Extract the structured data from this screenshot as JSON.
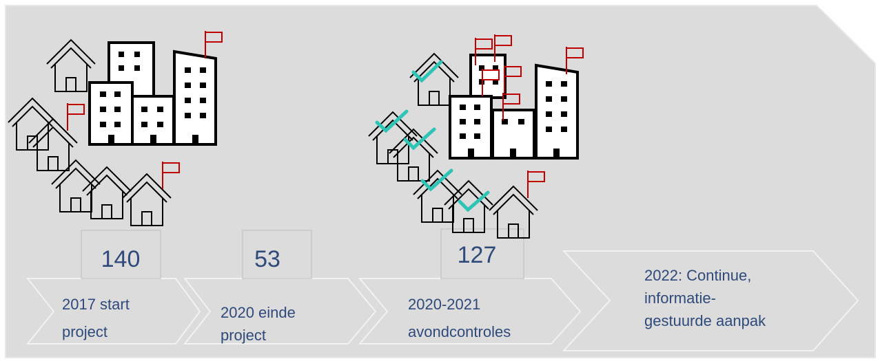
{
  "steps": [
    {
      "count": "140",
      "lines": [
        "2017 start",
        "project"
      ]
    },
    {
      "count": "53",
      "lines": [
        "2020 einde",
        "project"
      ]
    },
    {
      "count": "127",
      "lines": [
        "2020-2021",
        "avondcontroles"
      ]
    },
    {
      "lines": [
        "2022: Continue,",
        "informatie-",
        "gestuurde aanpak"
      ]
    }
  ]
}
